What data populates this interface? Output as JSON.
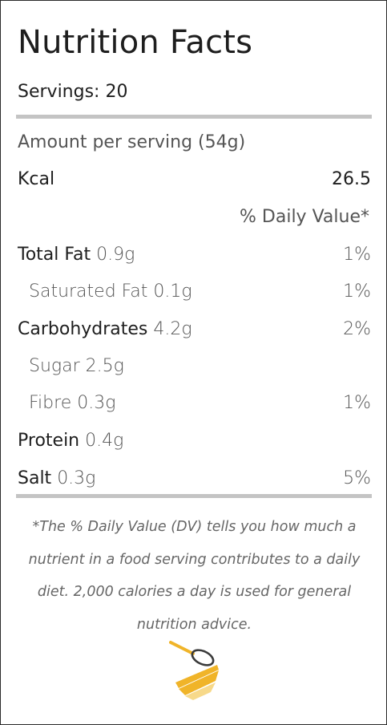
{
  "title": "Nutrition Facts",
  "servings": "Servings: 20",
  "amount_per_serving": "Amount per serving (54g)",
  "kcal": {
    "label": "Kcal",
    "value": "26.5"
  },
  "daily_value_header": "% Daily Value*",
  "rows": [
    {
      "label": "Total Fat",
      "amount": "0.9g",
      "dv": "1%"
    },
    {
      "label": "Saturated Fat",
      "amount": "0.1g",
      "dv": "1%"
    },
    {
      "label": "Carbohydrates",
      "amount": "4.2g",
      "dv": "2%"
    },
    {
      "label": "Sugar",
      "amount": "2.5g",
      "dv": ""
    },
    {
      "label": "Fibre",
      "amount": "0.3g",
      "dv": "1%"
    },
    {
      "label": "Protein",
      "amount": "0.4g",
      "dv": ""
    },
    {
      "label": "Salt",
      "amount": "0.3g",
      "dv": "5%"
    }
  ],
  "footnote": "*The % Daily Value (DV) tells you how much a nutrient in a food serving contributes to a daily diet. 2,000 calories a day is used for general nutrition advice.",
  "colors": {
    "rule": "#c4c4c4",
    "logo_primary": "#f0b429",
    "logo_light": "#f7d98a"
  },
  "logo_icon": "whisk-bowl-icon"
}
